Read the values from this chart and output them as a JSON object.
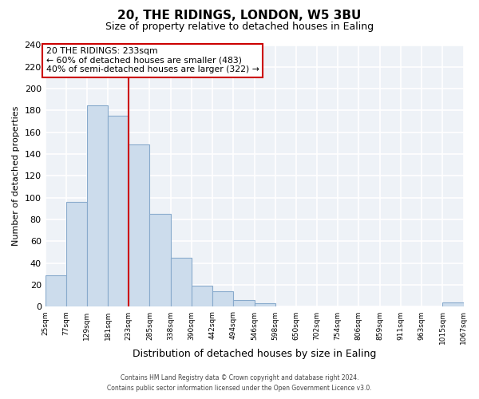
{
  "title": "20, THE RIDINGS, LONDON, W5 3BU",
  "subtitle": "Size of property relative to detached houses in Ealing",
  "xlabel": "Distribution of detached houses by size in Ealing",
  "ylabel": "Number of detached properties",
  "bar_edges": [
    25,
    77,
    129,
    181,
    233,
    285,
    338,
    390,
    442,
    494,
    546,
    598,
    650,
    702,
    754,
    806,
    859,
    911,
    963,
    1015,
    1067
  ],
  "bar_heights": [
    29,
    96,
    185,
    175,
    149,
    85,
    45,
    19,
    14,
    6,
    3,
    0,
    0,
    0,
    0,
    0,
    0,
    0,
    0,
    4
  ],
  "bar_color": "#ccdcec",
  "bar_edge_color": "#88aacc",
  "vline_x": 233,
  "vline_color": "#cc0000",
  "ylim": [
    0,
    240
  ],
  "yticks": [
    0,
    20,
    40,
    60,
    80,
    100,
    120,
    140,
    160,
    180,
    200,
    220,
    240
  ],
  "annotation_title": "20 THE RIDINGS: 233sqm",
  "annotation_line1": "← 60% of detached houses are smaller (483)",
  "annotation_line2": "40% of semi-detached houses are larger (322) →",
  "annotation_box_color": "#cc0000",
  "footer_line1": "Contains HM Land Registry data © Crown copyright and database right 2024.",
  "footer_line2": "Contains public sector information licensed under the Open Government Licence v3.0.",
  "bg_color": "#eef2f7",
  "grid_color": "#ffffff",
  "fig_bg": "#ffffff",
  "tick_labels": [
    "25sqm",
    "77sqm",
    "129sqm",
    "181sqm",
    "233sqm",
    "285sqm",
    "338sqm",
    "390sqm",
    "442sqm",
    "494sqm",
    "546sqm",
    "598sqm",
    "650sqm",
    "702sqm",
    "754sqm",
    "806sqm",
    "859sqm",
    "911sqm",
    "963sqm",
    "1015sqm",
    "1067sqm"
  ],
  "title_fontsize": 11,
  "subtitle_fontsize": 9,
  "ylabel_fontsize": 8,
  "xlabel_fontsize": 9
}
